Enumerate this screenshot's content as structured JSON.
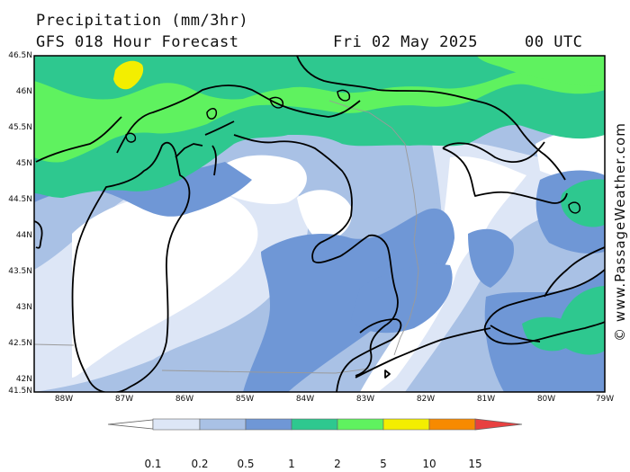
{
  "header": {
    "title": "Precipitation (mm/3hr)",
    "subtitle": "GFS 018 Hour Forecast",
    "date": "Fri 02 May 2025",
    "time": "00 UTC"
  },
  "map": {
    "latitude_labels": [
      "46.5N",
      "46N",
      "45.5N",
      "45N",
      "44.5N",
      "44N",
      "43.5N",
      "43N",
      "42.5N",
      "42N",
      "41.5N"
    ],
    "longitude_labels": [
      "88W",
      "87W",
      "86W",
      "85W",
      "84W",
      "83W",
      "82W",
      "81W",
      "80W",
      "79W"
    ],
    "credit": "© www.PassageWeather.com"
  },
  "legend": {
    "labels": [
      "0.1",
      "0.2",
      "0.5",
      "1",
      "2",
      "5",
      "10",
      "15"
    ],
    "colors": [
      "#ffffff",
      "#dde6f6",
      "#a9c1e5",
      "#6f97d6",
      "#2ec88f",
      "#5ff25f",
      "#f3ee00",
      "#f78a00",
      "#e84040"
    ]
  },
  "palette": {
    "bin_0_2": "#dde6f6",
    "bin_2_5": "#a9c1e5",
    "bin_5_1": "#6f97d6",
    "bin_1_2": "#2ec88f",
    "bin_2_5mm": "#5ff25f",
    "bin_5_10": "#f3ee00"
  }
}
